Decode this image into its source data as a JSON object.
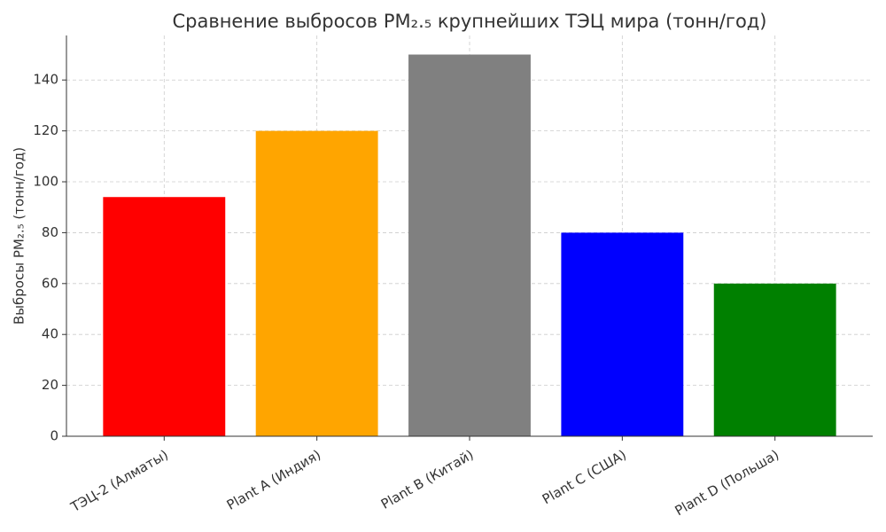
{
  "chart_data": {
    "type": "bar",
    "title": "Сравнение выбросов PM₂.₅ крупнейших ТЭЦ мира (тонн/год)",
    "y_label": "Выбросы PM₂.₅ (тонн/год)",
    "categories": [
      "ТЭЦ-2 (Алматы)",
      "Plant A (Индия)",
      "Plant B (Китай)",
      "Plant C (США)",
      "Plant D (Польша)"
    ],
    "values": [
      94,
      120,
      150,
      80,
      60
    ],
    "colors": [
      "#ff0000",
      "#ffa500",
      "#808080",
      "#0000ff",
      "#008000"
    ],
    "ylim": [
      0,
      157.5
    ],
    "yticks": [
      0,
      20,
      40,
      60,
      80,
      100,
      120,
      140
    ],
    "grid": true
  }
}
